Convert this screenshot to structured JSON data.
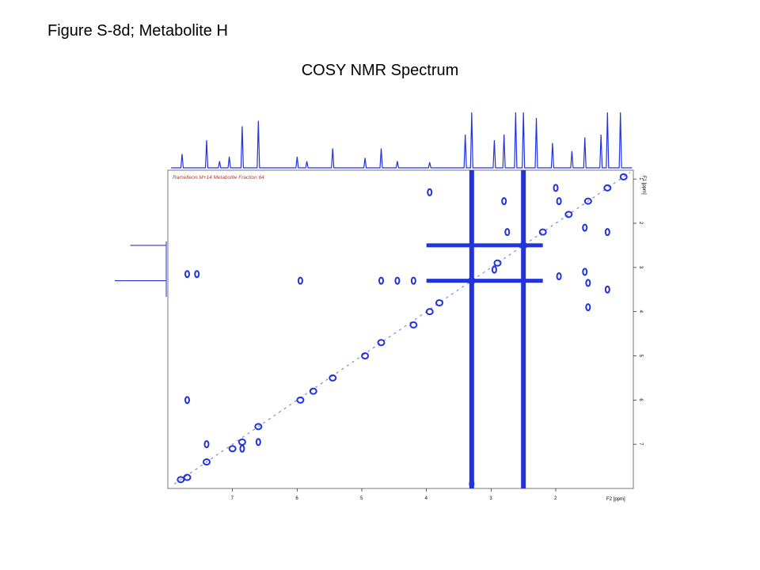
{
  "figure_label": "Figure S-8d; Metabolite H",
  "title": "COSY NMR Spectrum",
  "sample_label": "Ramelteon M+14 Metabolite Fraction 64",
  "f1_axis_label": "F1 [ppm]",
  "f2_axis_label": "F2 [ppm]",
  "f2_ticks": [
    "7",
    "6",
    "5",
    "4",
    "3",
    "2"
  ],
  "f1_ticks": [
    "1",
    "2",
    "3",
    "4",
    "5",
    "6",
    "7"
  ],
  "colors": {
    "contour": "#2233dd",
    "sample_label": "#c0392b"
  },
  "chart_data": {
    "type": "scatter",
    "x_axis": {
      "label": "F2 [ppm]",
      "range": [
        8.0,
        0.8
      ],
      "ticks": [
        7,
        6,
        5,
        4,
        3,
        2
      ]
    },
    "y_axis": {
      "label": "F1 [ppm]",
      "range": [
        0.8,
        8.0
      ],
      "ticks": [
        1,
        2,
        3,
        4,
        5,
        6,
        7
      ]
    },
    "diagonal_peaks": [
      {
        "x": 7.8,
        "y": 7.8
      },
      {
        "x": 7.7,
        "y": 7.75
      },
      {
        "x": 7.4,
        "y": 7.4
      },
      {
        "x": 7.0,
        "y": 7.1
      },
      {
        "x": 6.85,
        "y": 6.95
      },
      {
        "x": 6.6,
        "y": 6.6
      },
      {
        "x": 5.95,
        "y": 6.0
      },
      {
        "x": 5.75,
        "y": 5.8
      },
      {
        "x": 5.45,
        "y": 5.5
      },
      {
        "x": 4.95,
        "y": 5.0
      },
      {
        "x": 4.7,
        "y": 4.7
      },
      {
        "x": 4.2,
        "y": 4.3
      },
      {
        "x": 3.95,
        "y": 4.0
      },
      {
        "x": 3.8,
        "y": 3.8
      },
      {
        "x": 3.3,
        "y": 3.3
      },
      {
        "x": 2.9,
        "y": 2.9
      },
      {
        "x": 2.5,
        "y": 2.5
      },
      {
        "x": 2.2,
        "y": 2.2
      },
      {
        "x": 1.8,
        "y": 1.8
      },
      {
        "x": 1.5,
        "y": 1.5
      },
      {
        "x": 1.2,
        "y": 1.2
      },
      {
        "x": 0.95,
        "y": 0.95
      }
    ],
    "cross_peaks": [
      {
        "x": 7.7,
        "y": 3.15
      },
      {
        "x": 7.55,
        "y": 3.15
      },
      {
        "x": 5.95,
        "y": 3.3
      },
      {
        "x": 4.7,
        "y": 3.3
      },
      {
        "x": 4.45,
        "y": 3.3
      },
      {
        "x": 4.2,
        "y": 3.3
      },
      {
        "x": 3.95,
        "y": 1.3
      },
      {
        "x": 3.3,
        "y": 7.9
      },
      {
        "x": 7.4,
        "y": 7.0
      },
      {
        "x": 6.85,
        "y": 7.1
      },
      {
        "x": 6.6,
        "y": 6.95
      },
      {
        "x": 7.7,
        "y": 6.0
      },
      {
        "x": 2.0,
        "y": 1.2
      },
      {
        "x": 1.95,
        "y": 1.5
      },
      {
        "x": 1.2,
        "y": 2.2
      },
      {
        "x": 1.55,
        "y": 2.1
      },
      {
        "x": 1.95,
        "y": 3.2
      },
      {
        "x": 1.55,
        "y": 3.1
      },
      {
        "x": 1.5,
        "y": 3.35
      },
      {
        "x": 1.2,
        "y": 3.5
      },
      {
        "x": 1.5,
        "y": 3.9
      },
      {
        "x": 2.95,
        "y": 3.05
      },
      {
        "x": 2.75,
        "y": 2.2
      },
      {
        "x": 2.8,
        "y": 1.5
      }
    ],
    "solvent_lines_f2": [
      3.3,
      2.5
    ],
    "solvent_lines_f1": [
      3.3,
      2.5
    ],
    "f2_projection_peaks": [
      {
        "x": 7.78,
        "h": 0.25
      },
      {
        "x": 7.4,
        "h": 0.5
      },
      {
        "x": 7.2,
        "h": 0.12
      },
      {
        "x": 7.05,
        "h": 0.2
      },
      {
        "x": 6.85,
        "h": 0.75
      },
      {
        "x": 6.6,
        "h": 0.85
      },
      {
        "x": 6.0,
        "h": 0.2
      },
      {
        "x": 5.85,
        "h": 0.12
      },
      {
        "x": 5.45,
        "h": 0.35
      },
      {
        "x": 4.95,
        "h": 0.18
      },
      {
        "x": 4.7,
        "h": 0.35
      },
      {
        "x": 4.45,
        "h": 0.12
      },
      {
        "x": 3.95,
        "h": 0.1
      },
      {
        "x": 3.4,
        "h": 0.6
      },
      {
        "x": 3.3,
        "h": 1.0
      },
      {
        "x": 2.95,
        "h": 0.5
      },
      {
        "x": 2.8,
        "h": 0.6
      },
      {
        "x": 2.62,
        "h": 1.0
      },
      {
        "x": 2.5,
        "h": 1.0
      },
      {
        "x": 2.3,
        "h": 0.9
      },
      {
        "x": 2.05,
        "h": 0.45
      },
      {
        "x": 1.75,
        "h": 0.3
      },
      {
        "x": 1.55,
        "h": 0.55
      },
      {
        "x": 1.3,
        "h": 0.6
      },
      {
        "x": 1.2,
        "h": 1.0
      },
      {
        "x": 1.0,
        "h": 1.0
      }
    ],
    "f1_projection_peaks": [
      {
        "y": 2.5,
        "h": 0.7
      },
      {
        "y": 3.3,
        "h": 1.0
      }
    ]
  }
}
